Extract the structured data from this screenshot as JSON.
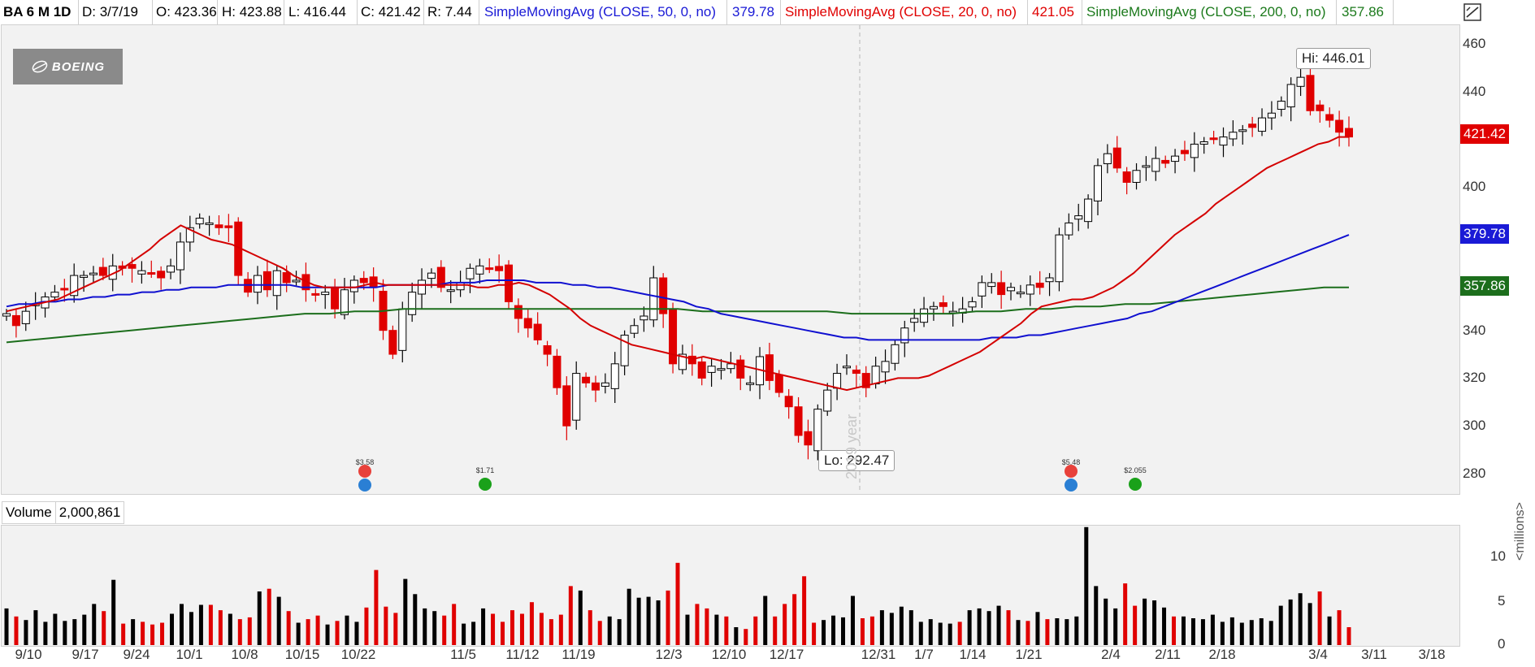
{
  "header": {
    "symbol": "BA 6 M 1D",
    "date": "D: 3/7/19",
    "open": "O: 423.36",
    "high": "H: 423.88",
    "low": "L: 416.44",
    "close": "C: 421.42",
    "range": "R: 7.44",
    "sma50_label": "SimpleMovingAvg (CLOSE, 50, 0, no)",
    "sma50_value": "379.78",
    "sma20_label": "SimpleMovingAvg (CLOSE, 20, 0, no)",
    "sma20_value": "421.05",
    "sma200_label": "SimpleMovingAvg (CLOSE, 200, 0, no)",
    "sma200_value": "357.86"
  },
  "logo": {
    "text": "BOEING"
  },
  "colors": {
    "up": "#000000",
    "down": "#e00000",
    "sma20": "#d40000",
    "sma50": "#1010d0",
    "sma200": "#1c6e1c"
  },
  "volume": {
    "label": "Volume",
    "value": "2,000,861",
    "unit_label": "<millions>",
    "y_ticks": [
      "10",
      "5",
      "0"
    ]
  },
  "price_tags": {
    "last": "421.42",
    "sma50": "379.78",
    "sma200": "357.86"
  },
  "callouts": {
    "high": "Hi: 446.01",
    "low": "Lo: 292.47"
  },
  "watermark": "2019 year",
  "events": [
    {
      "label": "$3.58",
      "kind": "earnings"
    },
    {
      "label": "$1.71",
      "kind": "dividend"
    },
    {
      "label": "$5.48",
      "kind": "earnings"
    },
    {
      "label": "$2.055",
      "kind": "dividend"
    }
  ],
  "chart_data": {
    "type": "candlestick",
    "y_ticks": [
      460,
      440,
      420,
      400,
      380,
      360,
      340,
      320,
      300,
      280
    ],
    "y_tick_labels": [
      "460",
      "440",
      "420",
      "400",
      "380",
      "360",
      "340",
      "320",
      "300",
      "280"
    ],
    "ylim": [
      273,
      464
    ],
    "x_tick_labels": [
      "9/10",
      "9/17",
      "9/24",
      "10/1",
      "10/8",
      "10/15",
      "10/22",
      "11/5",
      "11/12",
      "11/19",
      "12/3",
      "12/10",
      "12/17",
      "12/31",
      "1/7",
      "1/14",
      "1/21",
      "2/4",
      "2/11",
      "2/18",
      "3/4",
      "3/11",
      "3/18"
    ],
    "closes": [
      347,
      342,
      348,
      351,
      354,
      356,
      357,
      363,
      363,
      364,
      363,
      367,
      366,
      366,
      365,
      364,
      362,
      367,
      377,
      383,
      387,
      385,
      383,
      383,
      363,
      356,
      363,
      357,
      365,
      360,
      361,
      357,
      355,
      356,
      349,
      357,
      361,
      360,
      358,
      340,
      330,
      349,
      356,
      361,
      364,
      358,
      357,
      360,
      366,
      367,
      366,
      365,
      352,
      345,
      341,
      336,
      330,
      316,
      300,
      322,
      318,
      315,
      318,
      326,
      338,
      342,
      346,
      362,
      347,
      326,
      330,
      326,
      320,
      325,
      324,
      326,
      320,
      318,
      329,
      319,
      314,
      308,
      296,
      292,
      307,
      315,
      322,
      325,
      322,
      316,
      325,
      327,
      334,
      341,
      345,
      349,
      350,
      350,
      348,
      349,
      352,
      360,
      360,
      355,
      358,
      356,
      359,
      358,
      362,
      380,
      385,
      388,
      395,
      409,
      414,
      408,
      402,
      407,
      409,
      412,
      410,
      413,
      414,
      418,
      419,
      420,
      421,
      423,
      424,
      425,
      429,
      431,
      436,
      443,
      446,
      432,
      432,
      428,
      423,
      421
    ],
    "sma20": [
      348,
      349,
      350,
      351,
      352,
      353,
      355,
      357,
      359,
      361,
      363,
      365,
      368,
      371,
      374,
      378,
      381,
      384,
      382,
      380,
      378,
      377,
      376,
      374,
      372,
      370,
      368,
      366,
      363,
      361,
      359,
      358,
      358,
      358,
      358,
      359,
      360,
      359,
      359,
      359,
      359,
      359,
      359,
      359,
      359,
      359,
      358,
      358,
      359,
      359,
      360,
      359,
      357,
      355,
      352,
      349,
      345,
      342,
      340,
      338,
      336,
      334,
      333,
      332,
      331,
      330,
      329,
      328,
      329,
      328,
      327,
      326,
      325,
      324,
      323,
      322,
      321,
      320,
      319,
      318,
      317,
      316,
      315,
      316,
      317,
      318,
      319,
      320,
      320,
      320,
      321,
      323,
      325,
      327,
      329,
      331,
      334,
      337,
      340,
      343,
      347,
      350,
      351,
      352,
      353,
      353,
      354,
      356,
      358,
      361,
      364,
      368,
      372,
      376,
      380,
      383,
      386,
      389,
      393,
      396,
      399,
      402,
      405,
      408,
      410,
      412,
      414,
      416,
      418,
      419,
      421,
      421
    ],
    "sma50": [
      350,
      351,
      351,
      352,
      352,
      353,
      353,
      354,
      354,
      355,
      355,
      356,
      356,
      357,
      357,
      358,
      358,
      358,
      359,
      359,
      359,
      359,
      359,
      359,
      358,
      358,
      358,
      358,
      358,
      358,
      358,
      359,
      359,
      359,
      359,
      359,
      360,
      360,
      360,
      361,
      361,
      361,
      361,
      360,
      360,
      360,
      359,
      359,
      358,
      358,
      357,
      356,
      355,
      354,
      353,
      352,
      350,
      349,
      347,
      346,
      345,
      344,
      343,
      342,
      341,
      340,
      339,
      338,
      337,
      337,
      336,
      336,
      336,
      336,
      336,
      336,
      336,
      336,
      336,
      336,
      337,
      337,
      337,
      338,
      338,
      339,
      340,
      341,
      342,
      343,
      344,
      345,
      347,
      348,
      350,
      352,
      354,
      356,
      358,
      360,
      362,
      364,
      366,
      368,
      370,
      372,
      374,
      376,
      378,
      380
    ],
    "sma200": [
      335,
      336,
      337,
      338,
      339,
      340,
      341,
      342,
      343,
      344,
      345,
      346,
      347,
      347,
      348,
      348,
      349,
      349,
      349,
      349,
      349,
      349,
      349,
      349,
      349,
      349,
      349,
      349,
      348,
      348,
      348,
      348,
      348,
      348,
      347,
      347,
      347,
      347,
      347,
      348,
      348,
      349,
      349,
      350,
      350,
      351,
      351,
      352,
      353,
      354,
      355,
      356,
      357,
      358,
      358
    ],
    "volume_millions": [
      4.1,
      3.2,
      2.8,
      3.9,
      2.6,
      3.5,
      2.7,
      2.9,
      3.4,
      4.6,
      3.8,
      7.3,
      2.4,
      2.9,
      2.6,
      2.3,
      2.5,
      3.5,
      4.6,
      3.7,
      4.5,
      4.5,
      3.9,
      3.5,
      2.9,
      3.1,
      6.0,
      6.3,
      5.4,
      3.8,
      2.5,
      2.9,
      3.3,
      2.3,
      2.7,
      3.3,
      2.6,
      4.2,
      8.4,
      4.3,
      3.6,
      7.4,
      5.7,
      4.1,
      3.8,
      3.3,
      4.6,
      2.4,
      2.6,
      4.1,
      3.5,
      2.6,
      3.9,
      3.5,
      4.8,
      3.6,
      2.9,
      3.4,
      6.6,
      6.1,
      3.9,
      2.7,
      3.2,
      2.9,
      6.3,
      5.3,
      5.4,
      5.0,
      6.1,
      9.2,
      3.4,
      4.6,
      4.1,
      3.4,
      3.2,
      2.0,
      1.8,
      3.2,
      5.5,
      3.2,
      4.6,
      5.7,
      7.7,
      2.5,
      2.8,
      3.3,
      3.1,
      5.5,
      3.0,
      3.2,
      3.9,
      3.6,
      4.3,
      3.9,
      2.6,
      2.9,
      2.5,
      2.4,
      2.6,
      3.9,
      4.1,
      3.8,
      4.4,
      3.9,
      2.8,
      2.7,
      3.7,
      2.9,
      3.0,
      2.9,
      3.2,
      13.2,
      6.6,
      5.2,
      4.1,
      6.9,
      4.4,
      5.2,
      5.0,
      4.2,
      3.2,
      3.2,
      3.0,
      2.9,
      3.4,
      2.6,
      3.1,
      2.5,
      2.8,
      3.0,
      2.7,
      4.4,
      5.1,
      5.8,
      4.7,
      6.0,
      3.2,
      3.9,
      2.0
    ]
  }
}
